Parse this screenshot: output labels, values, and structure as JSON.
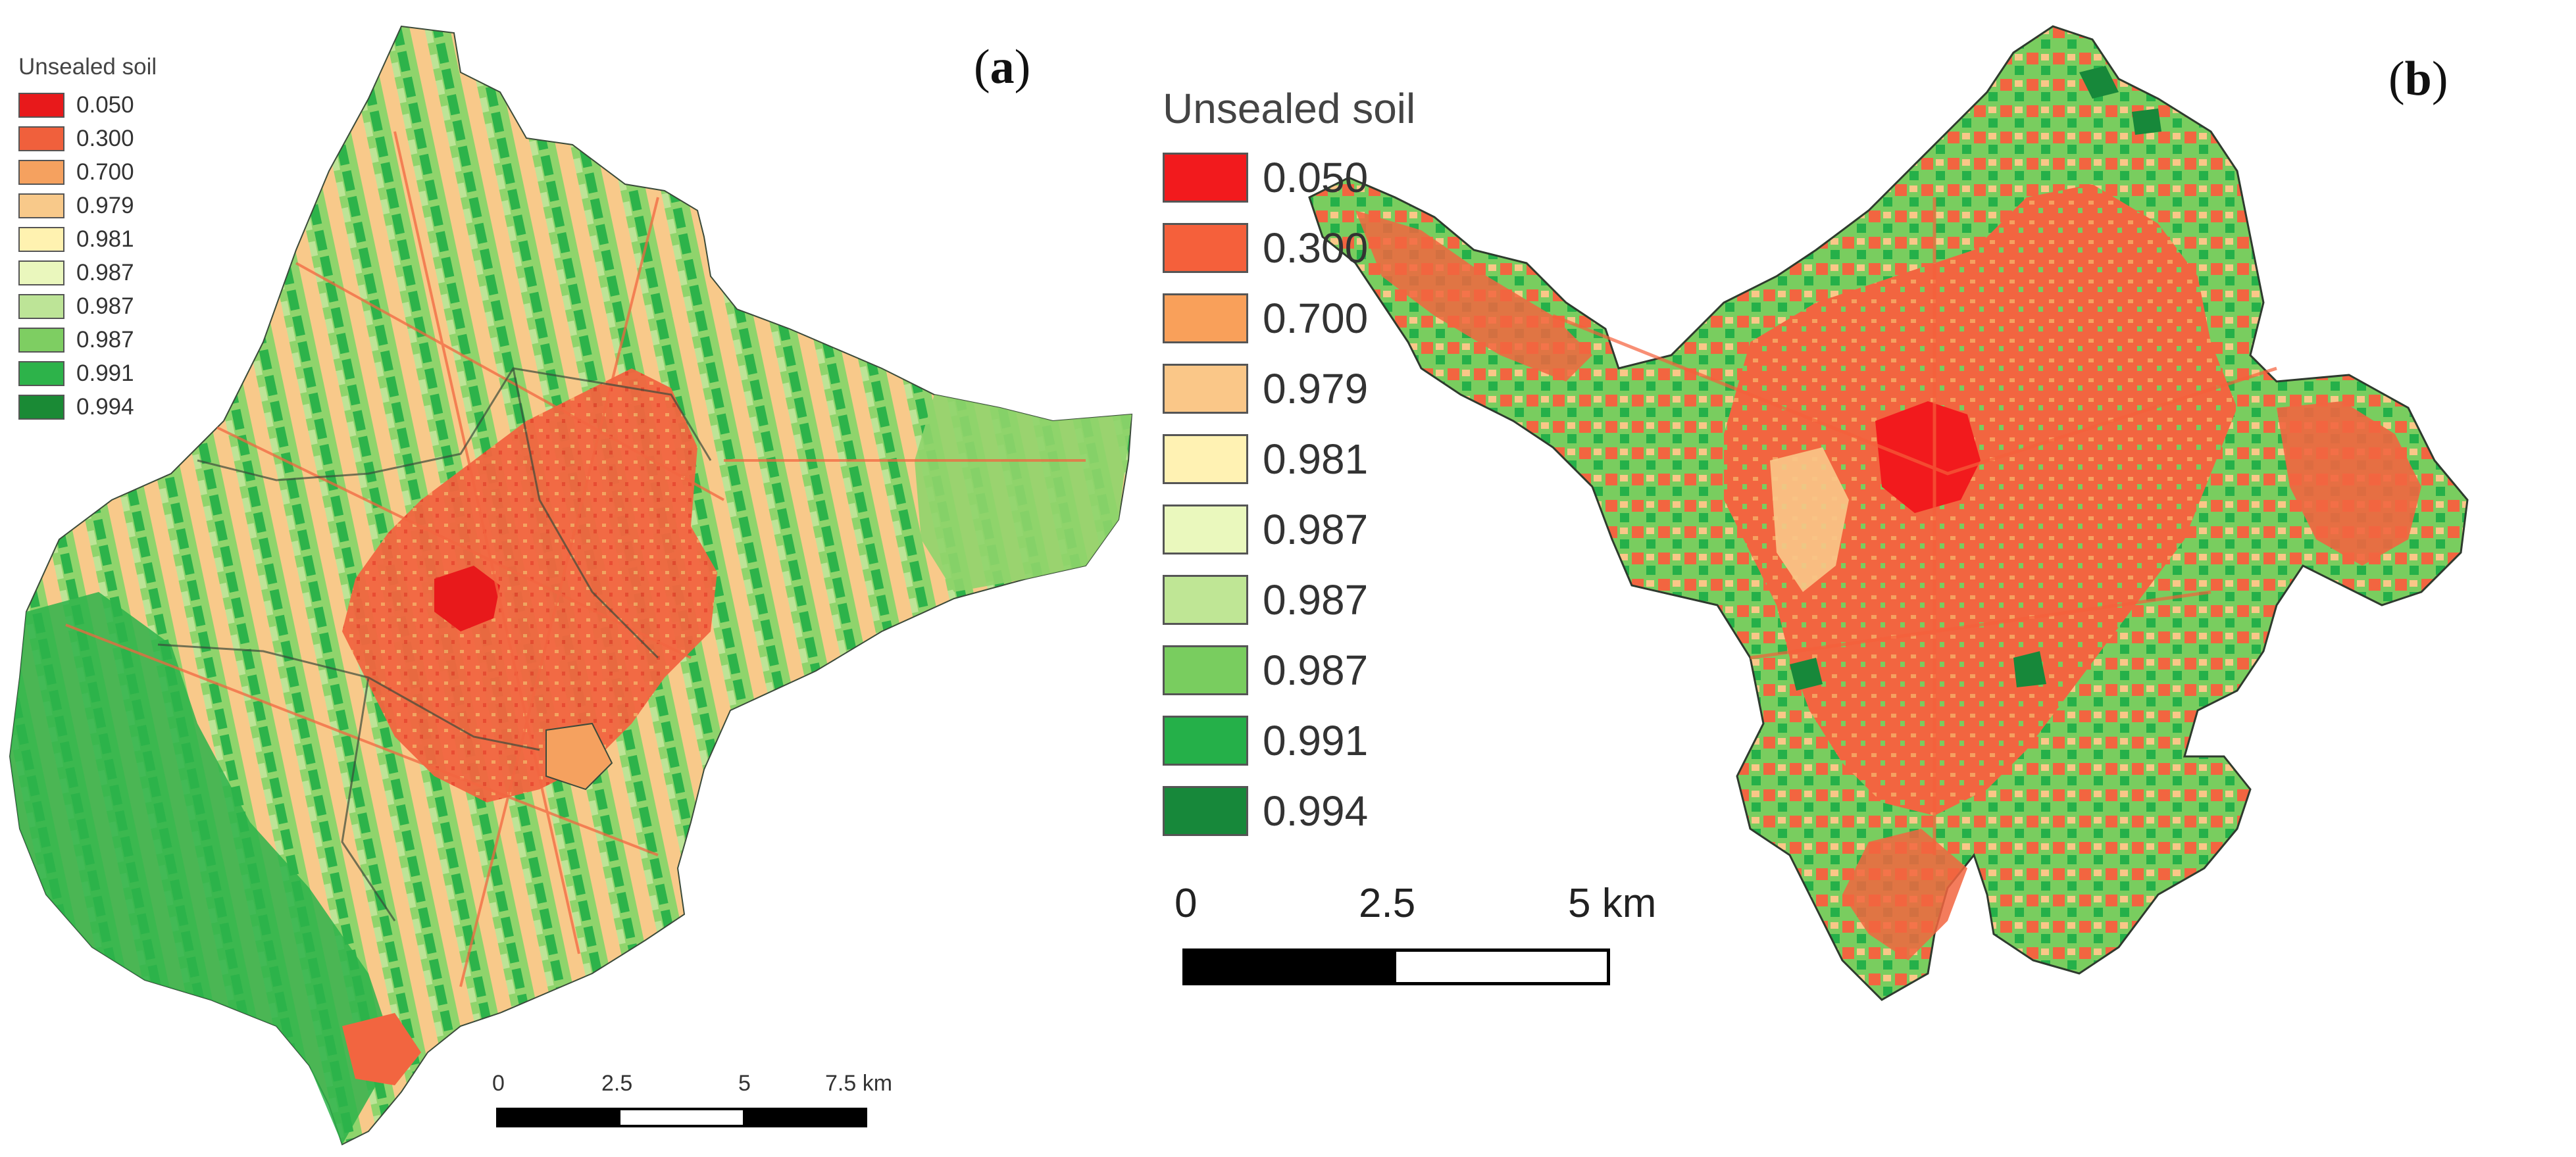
{
  "panels": [
    {
      "id": "a",
      "label": "a",
      "legend": {
        "title": "Unsealed soil",
        "items": [
          {
            "value": "0.050",
            "color": "#e8191b"
          },
          {
            "value": "0.300",
            "color": "#f0603c"
          },
          {
            "value": "0.700",
            "color": "#f5a15f"
          },
          {
            "value": "0.979",
            "color": "#f8c98a"
          },
          {
            "value": "0.981",
            "color": "#fff2b0"
          },
          {
            "value": "0.987",
            "color": "#eaf7bd"
          },
          {
            "value": "0.987",
            "color": "#bde497"
          },
          {
            "value": "0.987",
            "color": "#7ece62"
          },
          {
            "value": "0.991",
            "color": "#2db34a"
          },
          {
            "value": "0.994",
            "color": "#1a8a35"
          }
        ]
      },
      "scalebar": {
        "ticks": [
          "0",
          "2.5",
          "5",
          "7.5 km"
        ]
      }
    },
    {
      "id": "b",
      "label": "b",
      "legend": {
        "title": "Unsealed soil",
        "items": [
          {
            "value": "0.050",
            "color": "#f21a1d"
          },
          {
            "value": "0.300",
            "color": "#f5603b"
          },
          {
            "value": "0.700",
            "color": "#f9a05a"
          },
          {
            "value": "0.979",
            "color": "#fac788"
          },
          {
            "value": "0.981",
            "color": "#fff2b3"
          },
          {
            "value": "0.987",
            "color": "#eaf8bd"
          },
          {
            "value": "0.987",
            "color": "#bfe695"
          },
          {
            "value": "0.987",
            "color": "#79cd5f"
          },
          {
            "value": "0.991",
            "color": "#25b049"
          },
          {
            "value": "0.994",
            "color": "#17883a"
          }
        ]
      },
      "scalebar": {
        "ticks": [
          "0",
          "2.5",
          "5 km"
        ]
      }
    }
  ],
  "colors": {
    "urban_core": "#e8191b",
    "urban": "#f26540",
    "peri_urban": "#f8c98a",
    "vegetation": "#7ece62",
    "dense_vegetation": "#2db34a",
    "boundary": "#3a4a3a"
  }
}
